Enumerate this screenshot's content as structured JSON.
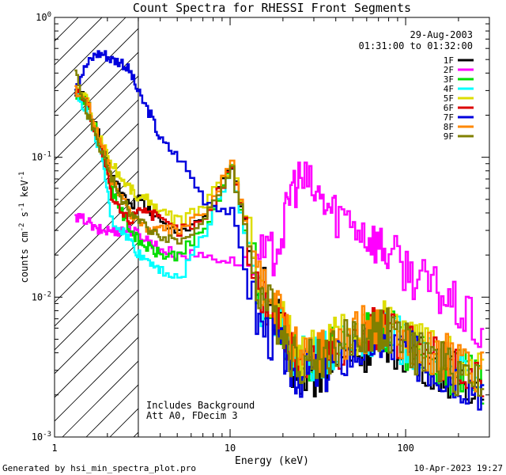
{
  "chart_data": {
    "type": "line",
    "title": "Count Spectra for RHESSI Front Segments",
    "xlabel": "Energy (keV)",
    "ylabel_parts": {
      "base": "counts cm",
      "exp1": "-2",
      "mid1": " s",
      "exp2": "-1",
      "mid2": " keV",
      "exp3": "-1"
    },
    "x_scale": "log",
    "y_scale": "log",
    "xlim": [
      1,
      300
    ],
    "ylim": [
      0.001,
      1
    ],
    "x_ticks": [
      {
        "value": 1,
        "label": "1"
      },
      {
        "value": 10,
        "label": "10"
      },
      {
        "value": 100,
        "label": "100"
      }
    ],
    "y_ticks": [
      {
        "value": 0.001,
        "base": "10",
        "exp": "-3"
      },
      {
        "value": 0.01,
        "base": "10",
        "exp": "-2"
      },
      {
        "value": 0.1,
        "base": "10",
        "exp": "-1"
      },
      {
        "value": 1,
        "base": "10",
        "exp": "0"
      }
    ],
    "date_label": "29-Aug-2003",
    "time_range_label": "01:31:00 to 01:32:00",
    "annotations": [
      "Includes Background",
      "Att A0, FDecim 3"
    ],
    "hatched_region_keV": [
      1,
      3
    ],
    "series": [
      {
        "name": "1F",
        "color": "#000000",
        "values": [
          0.3,
          0.26,
          0.17,
          0.11,
          0.075,
          0.055,
          0.045,
          0.05,
          0.04,
          0.035,
          0.03,
          0.035,
          0.09,
          0.014,
          0.009,
          0.006,
          0.0035,
          0.003,
          0.0028,
          0.003,
          0.0035,
          0.004,
          0.0042,
          0.005,
          0.0048,
          0.004,
          0.0035,
          0.003,
          0.0028,
          0.0025,
          0.0022
        ]
      },
      {
        "name": "2F",
        "color": "#ff00ff",
        "values": [
          0.036,
          0.036,
          0.03,
          0.03,
          0.03,
          0.03,
          0.03,
          0.028,
          0.025,
          0.022,
          0.02,
          0.02,
          0.018,
          0.018,
          0.02,
          0.03,
          0.06,
          0.07,
          0.055,
          0.045,
          0.04,
          0.035,
          0.028,
          0.024,
          0.02,
          0.016,
          0.013,
          0.011,
          0.009,
          0.007,
          0.005
        ]
      },
      {
        "name": "3F",
        "color": "#00dd00",
        "values": [
          0.29,
          0.25,
          0.16,
          0.1,
          0.06,
          0.04,
          0.03,
          0.025,
          0.022,
          0.02,
          0.02,
          0.03,
          0.085,
          0.012,
          0.008,
          0.006,
          0.004,
          0.0035,
          0.0035,
          0.004,
          0.0045,
          0.005,
          0.0055,
          0.006,
          0.0055,
          0.0045,
          0.004,
          0.0035,
          0.003,
          0.0028,
          0.0025
        ]
      },
      {
        "name": "4F",
        "color": "#00ffff",
        "values": [
          0.28,
          0.22,
          0.14,
          0.08,
          0.035,
          0.03,
          0.025,
          0.02,
          0.018,
          0.016,
          0.013,
          0.03,
          0.085,
          0.01,
          0.0075,
          0.006,
          0.004,
          0.0035,
          0.0035,
          0.004,
          0.0045,
          0.005,
          0.0055,
          0.006,
          0.0055,
          0.0045,
          0.004,
          0.0035,
          0.003,
          0.0028,
          0.0025
        ]
      },
      {
        "name": "5F",
        "color": "#dddd00",
        "values": [
          0.31,
          0.27,
          0.16,
          0.12,
          0.09,
          0.07,
          0.06,
          0.05,
          0.05,
          0.04,
          0.035,
          0.045,
          0.09,
          0.015,
          0.009,
          0.007,
          0.005,
          0.004,
          0.004,
          0.0045,
          0.005,
          0.0055,
          0.006,
          0.0065,
          0.006,
          0.005,
          0.0045,
          0.004,
          0.0035,
          0.003,
          0.0028
        ]
      },
      {
        "name": "6F",
        "color": "#dd0000",
        "values": [
          0.3,
          0.26,
          0.15,
          0.1,
          0.05,
          0.04,
          0.035,
          0.045,
          0.04,
          0.035,
          0.03,
          0.035,
          0.09,
          0.013,
          0.008,
          0.006,
          0.004,
          0.0035,
          0.0035,
          0.004,
          0.0045,
          0.005,
          0.0055,
          0.006,
          0.0055,
          0.0045,
          0.004,
          0.0035,
          0.003,
          0.0028,
          0.0025
        ]
      },
      {
        "name": "7F",
        "color": "#0000dd",
        "values": [
          0.33,
          0.45,
          0.55,
          0.55,
          0.5,
          0.48,
          0.4,
          0.28,
          0.2,
          0.13,
          0.1,
          0.05,
          0.04,
          0.007,
          0.005,
          0.004,
          0.003,
          0.0028,
          0.0028,
          0.003,
          0.0035,
          0.004,
          0.0045,
          0.005,
          0.0045,
          0.004,
          0.0035,
          0.003,
          0.0028,
          0.0025,
          0.0022
        ]
      },
      {
        "name": "8F",
        "color": "#ff8800",
        "values": [
          0.3,
          0.27,
          0.16,
          0.11,
          0.07,
          0.05,
          0.04,
          0.035,
          0.03,
          0.03,
          0.03,
          0.04,
          0.09,
          0.014,
          0.009,
          0.007,
          0.005,
          0.004,
          0.004,
          0.0045,
          0.005,
          0.0055,
          0.006,
          0.0065,
          0.006,
          0.005,
          0.0045,
          0.004,
          0.0035,
          0.003,
          0.0028
        ]
      },
      {
        "name": "9F",
        "color": "#808000",
        "values": [
          0.4,
          0.22,
          0.14,
          0.1,
          0.07,
          0.05,
          0.04,
          0.035,
          0.03,
          0.028,
          0.025,
          0.035,
          0.085,
          0.012,
          0.008,
          0.006,
          0.004,
          0.0035,
          0.0035,
          0.004,
          0.0045,
          0.005,
          0.0055,
          0.006,
          0.0055,
          0.0045,
          0.004,
          0.0035,
          0.003,
          0.0028,
          0.0025
        ]
      }
    ],
    "x": [
      1.3,
      1.5,
      1.7,
      1.9,
      2.1,
      2.4,
      2.7,
      3.0,
      3.5,
      4.0,
      5.0,
      7.0,
      10.0,
      14.0,
      17.0,
      20.0,
      22.0,
      25.0,
      30.0,
      35.0,
      40.0,
      50.0,
      60.0,
      70.0,
      80.0,
      100.0,
      120.0,
      150.0,
      180.0,
      220.0,
      280.0
    ]
  },
  "footer": {
    "left": "Generated by hsi_min_spectra_plot.pro",
    "right": "10-Apr-2023 19:27"
  }
}
